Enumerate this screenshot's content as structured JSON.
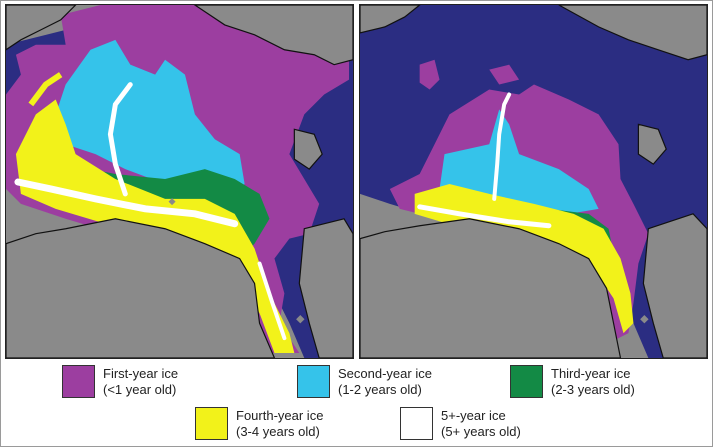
{
  "colors": {
    "land": "#8a8a8a",
    "ocean": "#2b2d82",
    "first_year": "#9c3ea0",
    "second_year": "#35c3ea",
    "third_year": "#138a45",
    "fourth_year": "#f2f21a",
    "five_plus": "#ffffff",
    "coastline": "#111111"
  },
  "maps": [
    {
      "name": "map-left",
      "sea_ice_present": true
    },
    {
      "name": "map-right",
      "sea_ice_present": true
    }
  ],
  "legend": {
    "items": [
      {
        "label": "First-year ice",
        "sublabel": "(<1 year old)",
        "color_key": "first_year"
      },
      {
        "label": "Second-year ice",
        "sublabel": "(1-2 years old)",
        "color_key": "second_year"
      },
      {
        "label": "Third-year ice",
        "sublabel": "(2-3 years old)",
        "color_key": "third_year"
      },
      {
        "label": "Fourth-year ice",
        "sublabel": "(3-4 years old)",
        "color_key": "fourth_year"
      },
      {
        "label": "5+-year ice",
        "sublabel": "(5+ years old)",
        "color_key": "five_plus"
      }
    ]
  }
}
